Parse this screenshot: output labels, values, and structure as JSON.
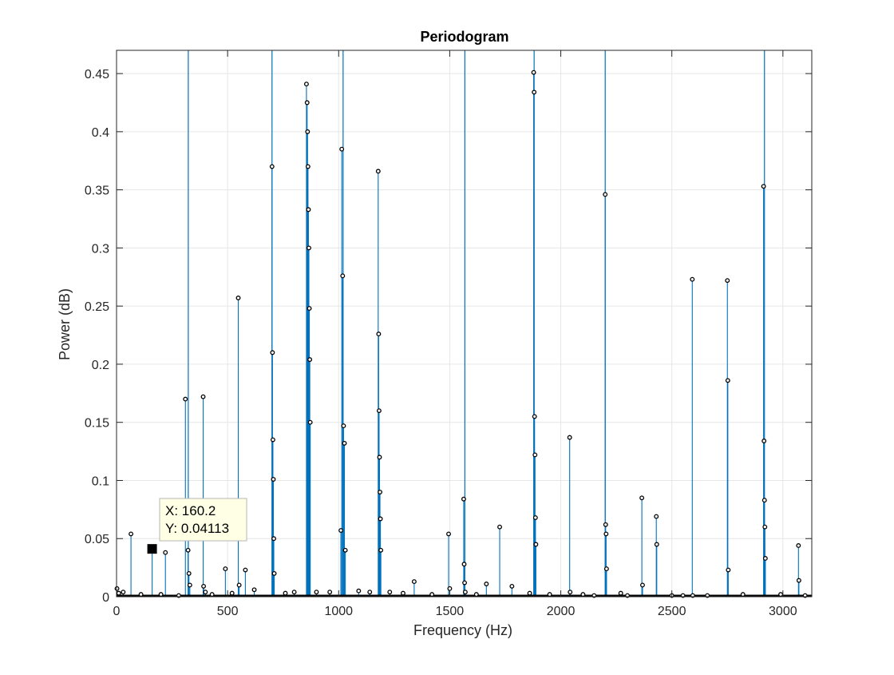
{
  "chart_data": {
    "type": "stem",
    "title": "Periodogram",
    "xlabel": "Frequency (Hz)",
    "ylabel": "Power (dB)",
    "xlim": [
      0,
      3130
    ],
    "ylim": [
      0,
      0.47
    ],
    "xticks": [
      0,
      500,
      1000,
      1500,
      2000,
      2500,
      3000
    ],
    "xtick_labels": [
      "0",
      "500",
      "1000",
      "1500",
      "2000",
      "2500",
      "3000"
    ],
    "yticks": [
      0,
      0.05,
      0.1,
      0.15,
      0.2,
      0.25,
      0.3,
      0.35,
      0.4,
      0.45
    ],
    "ytick_labels": [
      "0",
      "0.05",
      "0.1",
      "0.15",
      "0.2",
      "0.25",
      "0.3",
      "0.35",
      "0.4",
      "0.45"
    ],
    "grid": true,
    "stem_color": "#0072BD",
    "marker_color": "#000000",
    "series": [
      {
        "x": [
          2,
          10,
          30,
          65,
          110,
          160.2,
          200,
          220,
          280,
          310,
          322,
          326,
          330,
          390,
          392,
          400,
          430,
          490,
          520,
          548,
          552,
          580,
          620,
          700,
          702,
          704,
          706,
          708,
          710,
          760,
          800,
          855,
          858,
          860,
          862,
          864,
          866,
          868,
          870,
          872,
          900,
          960,
          1010,
          1014,
          1018,
          1022,
          1026,
          1030,
          1090,
          1140,
          1178,
          1180,
          1182,
          1184,
          1186,
          1188,
          1190,
          1230,
          1290,
          1340,
          1420,
          1495,
          1500,
          1563,
          1565,
          1567,
          1570,
          1620,
          1665,
          1725,
          1780,
          1860,
          1878,
          1880,
          1882,
          1884,
          1886,
          1888,
          1950,
          2040,
          2042,
          2100,
          2150,
          2200,
          2202,
          2204,
          2206,
          2270,
          2300,
          2365,
          2368,
          2430,
          2432,
          2500,
          2550,
          2592,
          2594,
          2660,
          2750,
          2752,
          2754,
          2820,
          2913,
          2915,
          2917,
          2919,
          2921,
          2990,
          3070,
          3072,
          3100
        ],
        "y": [
          0.007,
          0.003,
          0.004,
          0.054,
          0.002,
          0.04113,
          0.002,
          0.038,
          0.001,
          0.17,
          0.04,
          0.02,
          0.01,
          0.172,
          0.009,
          0.004,
          0.002,
          0.024,
          0.003,
          0.257,
          0.01,
          0.023,
          0.006,
          0.37,
          0.21,
          0.135,
          0.101,
          0.05,
          0.02,
          0.003,
          0.004,
          0.441,
          0.425,
          0.4,
          0.37,
          0.333,
          0.3,
          0.248,
          0.204,
          0.15,
          0.004,
          0.004,
          0.057,
          0.385,
          0.276,
          0.147,
          0.132,
          0.04,
          0.005,
          0.004,
          0.366,
          0.226,
          0.16,
          0.12,
          0.09,
          0.067,
          0.04,
          0.004,
          0.003,
          0.013,
          0.002,
          0.054,
          0.007,
          0.084,
          0.028,
          0.012,
          0.004,
          0.002,
          0.011,
          0.06,
          0.009,
          0.003,
          0.451,
          0.434,
          0.155,
          0.122,
          0.068,
          0.045,
          0.002,
          0.137,
          0.004,
          0.002,
          0.001,
          0.346,
          0.062,
          0.054,
          0.024,
          0.003,
          0.001,
          0.085,
          0.01,
          0.069,
          0.045,
          0.001,
          0.001,
          0.273,
          0.001,
          0.001,
          0.272,
          0.186,
          0.023,
          0.002,
          0.353,
          0.134,
          0.083,
          0.06,
          0.033,
          0.002,
          0.044,
          0.014,
          0.001
        ]
      }
    ],
    "clipped_stems_x": [
      323,
      700,
      1020,
      1568,
      1880,
      2200,
      2917
    ]
  },
  "datatip": {
    "x_text": "X: 160.2",
    "y_text": "Y: 0.04113",
    "x": 160.2,
    "y": 0.04113
  }
}
